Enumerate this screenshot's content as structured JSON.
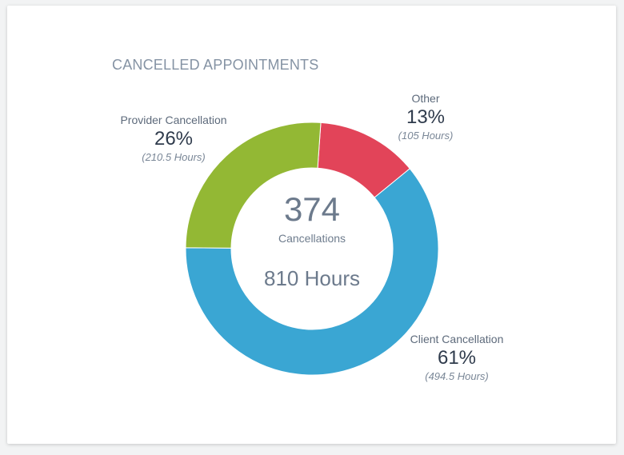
{
  "chart_data": {
    "type": "pie",
    "title": "CANCELLED APPOINTMENTS",
    "center": {
      "count": "374",
      "count_label": "Cancellations",
      "hours": "810 Hours"
    },
    "slices": [
      {
        "name": "Other",
        "percent_label": "13%",
        "hours_label": "(105 Hours)",
        "value": 105,
        "color": "#e24459"
      },
      {
        "name": "Client Cancellation",
        "percent_label": "61%",
        "hours_label": "(494.5 Hours)",
        "value": 494.5,
        "color": "#3aa6d3"
      },
      {
        "name": "Provider Cancellation",
        "percent_label": "26%",
        "hours_label": "(210.5 Hours)",
        "value": 210.5,
        "color": "#93b834"
      }
    ]
  }
}
